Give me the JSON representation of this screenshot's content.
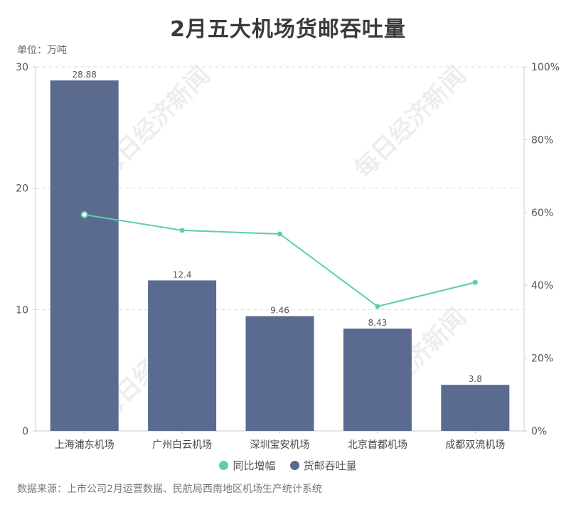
{
  "header": {
    "title": "2月五大机场货邮吞吐量",
    "unit": "单位：万吨"
  },
  "footer": {
    "source": "数据来源：上市公司2月运营数据、民航局西南地区机场生产统计系统"
  },
  "watermark": "每日经济新闻",
  "colors": {
    "bar": "#5a6b8f",
    "line": "#5ccfa8",
    "grid": "#d9d9d9",
    "axis": "#cccccc"
  },
  "legend": [
    {
      "label": "同比增幅",
      "color": "#5ccfa8"
    },
    {
      "label": "货邮吞吐量",
      "color": "#5a6b8f"
    }
  ],
  "chart_data": {
    "type": "bar",
    "title": "2月五大机场货邮吞吐量",
    "xlabel": "",
    "ylabel": "单位：万吨",
    "categories": [
      "上海浦东机场",
      "广州白云机场",
      "深圳宝安机场",
      "北京首都机场",
      "成都双流机场"
    ],
    "series": [
      {
        "name": "货邮吞吐量",
        "type": "bar",
        "axis": "left",
        "values": [
          28.88,
          12.4,
          9.46,
          8.43,
          3.8
        ],
        "labels": [
          "28.88",
          "12.4",
          "9.46",
          "8.43",
          "3.8"
        ]
      },
      {
        "name": "同比增幅",
        "type": "line",
        "axis": "right",
        "values": [
          59.4,
          55.1,
          54.1,
          34.2,
          40.8
        ],
        "unit": "%"
      }
    ],
    "ylim": [
      0,
      30
    ],
    "y_ticks": [
      "0",
      "10",
      "20",
      "30"
    ],
    "y2lim": [
      0,
      100
    ],
    "y2_ticks": [
      "0%",
      "20%",
      "40%",
      "60%",
      "80%",
      "100%"
    ],
    "grid": true,
    "legend_position": "bottom"
  }
}
